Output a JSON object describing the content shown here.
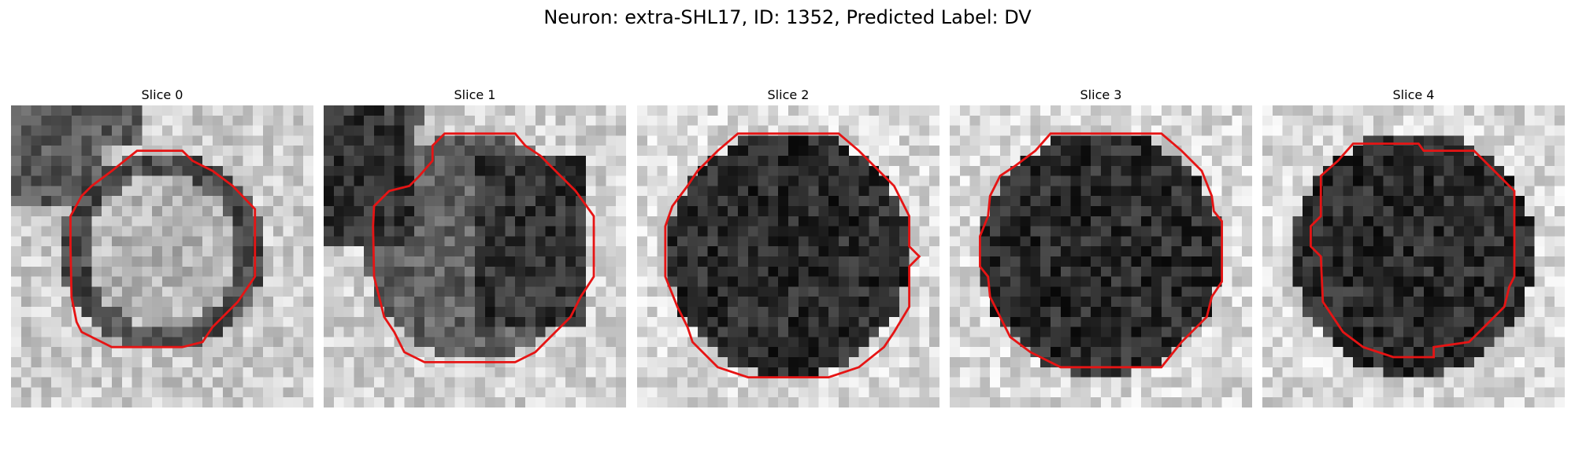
{
  "figure": {
    "title": "Neuron: extra-SHL17, ID: 1352, Predicted Label: DV",
    "contour_color": "#e61414"
  },
  "slices": [
    {
      "title": "Slice 0",
      "kind": "ring"
    },
    {
      "title": "Slice 1",
      "kind": "notch"
    },
    {
      "title": "Slice 2",
      "kind": "dark"
    },
    {
      "title": "Slice 3",
      "kind": "dark"
    },
    {
      "title": "Slice 4",
      "kind": "dark"
    }
  ]
}
